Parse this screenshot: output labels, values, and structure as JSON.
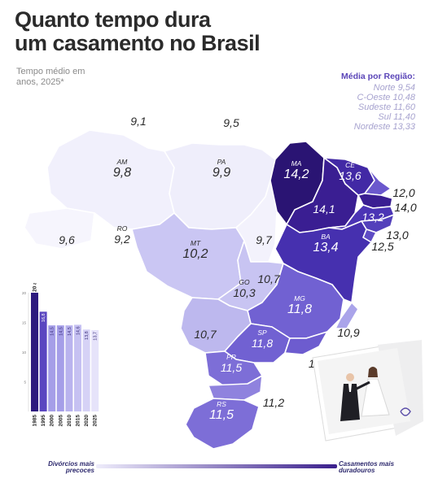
{
  "title_line1": "Quanto tempo dura",
  "title_line2": "um casamento no Brasil",
  "subtitle": "Tempo médio em anos, 2025*",
  "legend": {
    "heading": "Média por Região:",
    "items": [
      "Norte 9,54",
      "C-Oeste 10,48",
      "Sudeste 11,60",
      "Sul 11,40",
      "Nordeste 13,33"
    ]
  },
  "states": [
    {
      "id": "RR",
      "abbr": "",
      "value": "9,1",
      "fill": "#ffffff"
    },
    {
      "id": "AP",
      "abbr": "",
      "value": "9,5",
      "fill": "#ffffff"
    },
    {
      "id": "AM",
      "abbr": "AM",
      "value": "9,8",
      "fill": "#f1f0fc"
    },
    {
      "id": "PA",
      "abbr": "PA",
      "value": "9,9",
      "fill": "#efeefb"
    },
    {
      "id": "AC",
      "abbr": "",
      "value": "9,6",
      "fill": "#f6f5fd"
    },
    {
      "id": "RO",
      "abbr": "RO",
      "value": "9,2",
      "fill": "#ffffff"
    },
    {
      "id": "MT",
      "abbr": "MT",
      "value": "10,2",
      "fill": "#cac6f3"
    },
    {
      "id": "TO",
      "abbr": "",
      "value": "9,7",
      "fill": "#f3f2fc"
    },
    {
      "id": "MA",
      "abbr": "MA",
      "value": "14,2",
      "fill": "#2a1473"
    },
    {
      "id": "PI",
      "abbr": "",
      "value": "14,1",
      "fill": "#3a1e92"
    },
    {
      "id": "CE",
      "abbr": "CE",
      "value": "13,6",
      "fill": "#4229a5"
    },
    {
      "id": "RN",
      "abbr": "",
      "value": "12,0",
      "fill": "#6b58cd"
    },
    {
      "id": "PB",
      "abbr": "",
      "value": "14,0",
      "fill": "#3a1e92"
    },
    {
      "id": "PE",
      "abbr": "",
      "value": "13,2",
      "fill": "#4b34b5"
    },
    {
      "id": "AL",
      "abbr": "",
      "value": "13,0",
      "fill": "#5340bb"
    },
    {
      "id": "SE",
      "abbr": "",
      "value": "12,5",
      "fill": "#5f4cc5"
    },
    {
      "id": "BA",
      "abbr": "BA",
      "value": "13,4",
      "fill": "#4630af"
    },
    {
      "id": "DF",
      "abbr": "",
      "value": "10,7",
      "fill": "#bdb8ee"
    },
    {
      "id": "GO",
      "abbr": "GO",
      "value": "10,3",
      "fill": "#c8c4f2"
    },
    {
      "id": "MG",
      "abbr": "MG",
      "value": "11,8",
      "fill": "#7161d2"
    },
    {
      "id": "ES",
      "abbr": "",
      "value": "10,9",
      "fill": "#aaa4ea"
    },
    {
      "id": "MS",
      "abbr": "",
      "value": "10,7",
      "fill": "#bdb8ee"
    },
    {
      "id": "SP",
      "abbr": "SP",
      "value": "11,8",
      "fill": "#7161d2"
    },
    {
      "id": "RJ",
      "abbr": "",
      "value": "11,9",
      "fill": "#6d5ccf"
    },
    {
      "id": "PR",
      "abbr": "PR",
      "value": "11,5",
      "fill": "#7d6ed7"
    },
    {
      "id": "SC",
      "abbr": "",
      "value": "11,2",
      "fill": "#8f82de"
    },
    {
      "id": "RS",
      "abbr": "RS",
      "value": "11,5",
      "fill": "#7d6ed7"
    }
  ],
  "bar_chart": {
    "header": "20 anos",
    "y_ticks": [
      "20",
      "15",
      "10",
      "5"
    ],
    "ylim": [
      0,
      20
    ],
    "categories": [
      "1985",
      "1995",
      "2000",
      "2005",
      "2010",
      "2015",
      "2020",
      "2025"
    ],
    "values": [
      20,
      16.8,
      14.5,
      14.5,
      14.5,
      14.6,
      13.8,
      13.7
    ],
    "value_labels": [
      "",
      "16,8",
      "14,5",
      "14,5",
      "14,5",
      "14,6",
      "13,8",
      "13,7"
    ],
    "colors": [
      "#2d1a7e",
      "#5a46c0",
      "#a59ee8",
      "#a59ee8",
      "#b9b3ee",
      "#c6c1f2",
      "#d6d2f6",
      "#e6e3fa"
    ]
  },
  "gradient": {
    "left_label": "Divórcios mais precoces",
    "right_label": "Casamentos mais duradouros"
  }
}
